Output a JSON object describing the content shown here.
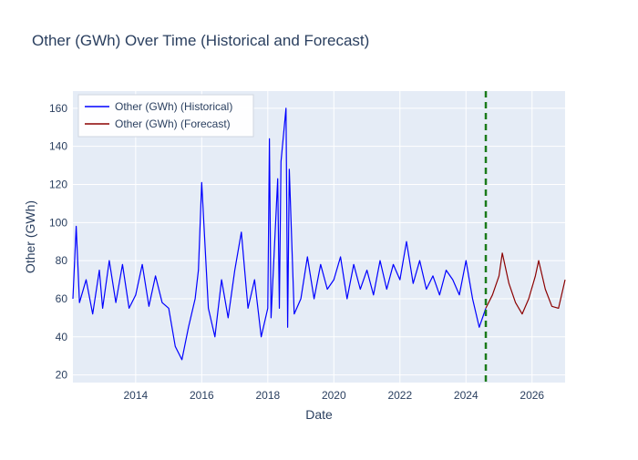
{
  "chart_data": {
    "type": "line",
    "title": "Other (GWh) Over Time (Historical and Forecast)",
    "xlabel": "Date",
    "ylabel": "Other (GWh)",
    "x_range": [
      2012.1,
      2027.0
    ],
    "ylim": [
      16,
      169
    ],
    "x_ticks": [
      2014,
      2016,
      2018,
      2020,
      2022,
      2024,
      2026
    ],
    "y_ticks": [
      20,
      40,
      60,
      80,
      100,
      120,
      140,
      160
    ],
    "grid": true,
    "legend_position": "top-left",
    "forecast_start_marker": 2024.6,
    "colors": {
      "historical": "#0000ff",
      "forecast": "#8b0000",
      "forecast_marker": "#1a7a1a",
      "plot_bg": "#e5ecf6",
      "grid": "#ffffff"
    },
    "series": [
      {
        "name": "Other (GWh) (Historical)",
        "x": [
          2012.1,
          2012.2,
          2012.3,
          2012.5,
          2012.7,
          2012.9,
          2013.0,
          2013.2,
          2013.4,
          2013.6,
          2013.8,
          2014.0,
          2014.2,
          2014.4,
          2014.6,
          2014.8,
          2015.0,
          2015.2,
          2015.4,
          2015.6,
          2015.8,
          2015.9,
          2016.0,
          2016.2,
          2016.4,
          2016.6,
          2016.8,
          2017.0,
          2017.2,
          2017.4,
          2017.6,
          2017.8,
          2018.0,
          2018.05,
          2018.1,
          2018.3,
          2018.35,
          2018.4,
          2018.55,
          2018.6,
          2018.65,
          2018.8,
          2019.0,
          2019.2,
          2019.4,
          2019.6,
          2019.8,
          2020.0,
          2020.2,
          2020.4,
          2020.6,
          2020.8,
          2021.0,
          2021.2,
          2021.4,
          2021.6,
          2021.8,
          2022.0,
          2022.2,
          2022.4,
          2022.6,
          2022.8,
          2023.0,
          2023.2,
          2023.4,
          2023.6,
          2023.8,
          2024.0,
          2024.2,
          2024.4,
          2024.6
        ],
        "y": [
          60,
          98,
          58,
          70,
          52,
          75,
          55,
          80,
          58,
          78,
          55,
          62,
          78,
          56,
          72,
          58,
          55,
          35,
          28,
          45,
          60,
          75,
          121,
          55,
          40,
          70,
          50,
          75,
          95,
          55,
          70,
          40,
          55,
          144,
          50,
          123,
          55,
          132,
          160,
          45,
          128,
          52,
          60,
          82,
          60,
          78,
          65,
          70,
          82,
          60,
          78,
          65,
          75,
          62,
          80,
          65,
          78,
          70,
          90,
          68,
          80,
          65,
          72,
          62,
          75,
          70,
          62,
          80,
          60,
          45,
          55
        ]
      },
      {
        "name": "Other (GWh) (Forecast)",
        "x": [
          2024.6,
          2024.8,
          2025.0,
          2025.1,
          2025.3,
          2025.5,
          2025.7,
          2025.9,
          2026.1,
          2026.2,
          2026.4,
          2026.6,
          2026.8,
          2027.0
        ],
        "y": [
          55,
          62,
          72,
          84,
          68,
          58,
          52,
          60,
          72,
          80,
          65,
          56,
          55,
          70
        ]
      }
    ]
  }
}
